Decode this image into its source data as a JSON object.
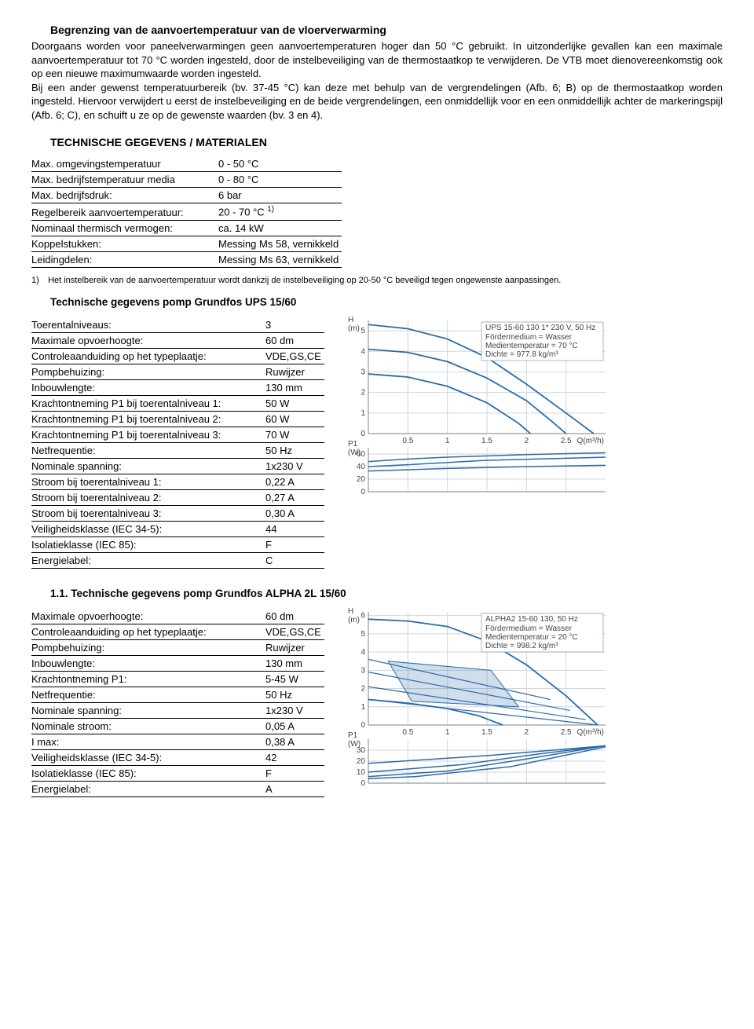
{
  "intro": {
    "heading": "Begrenzing van de aanvoertemperatuur van de vloerverwarming",
    "para": "Doorgaans worden voor paneelverwarmingen geen aanvoertemperaturen hoger dan 50 °C gebruikt. In uitzonderlijke gevallen kan een maximale aanvoertemperatuur tot 70 °C worden ingesteld, door de instelbeveiliging van de thermostaatkop te verwijderen. De VTB moet dienovereenkomstig ook op een nieuwe maximumwaarde worden ingesteld.\nBij een ander gewenst temperatuurbereik (bv. 37-45 °C) kan deze met behulp van de vergrendelingen (Afb. 6; B) op de thermostaatkop worden ingesteld. Hiervoor verwijdert u eerst de instelbeveiliging en de beide vergrendelingen, een onmiddellijk voor en een onmiddellijk achter de markeringspijl (Afb. 6; C), en schuift u ze op de gewenste waarden (bv. 3 en 4)."
  },
  "tech_heading": "TECHNISCHE GEGEVENS / MATERIALEN",
  "spec1": {
    "rows": [
      {
        "k": "Max. omgevingstemperatuur",
        "v": "0 - 50 °C"
      },
      {
        "k": "Max. bedrijfstemperatuur media",
        "v": "0 - 80 °C"
      },
      {
        "k": "Max. bedrijfsdruk:",
        "v": "6 bar"
      },
      {
        "k": "Regelbereik aanvoertemperatuur:",
        "v": "20 - 70 °C ",
        "sup": "1)"
      },
      {
        "k": "Nominaal thermisch vermogen:",
        "v": "ca. 14 kW"
      },
      {
        "k": "Koppelstukken:",
        "v": "Messing Ms 58, vernikkeld"
      },
      {
        "k": "Leidingdelen:",
        "v": "Messing Ms 63, vernikkeld"
      }
    ]
  },
  "footnote": {
    "num": "1)",
    "text": "Het instelbereik van de aanvoertemperatuur wordt dankzij de instelbeveiliging op 20-50 °C beveiligd tegen ongewenste aanpassingen."
  },
  "pump1": {
    "heading": "Technische gegevens pomp Grundfos UPS 15/60",
    "rows": [
      {
        "k": "Toerentalniveaus:",
        "v": "3"
      },
      {
        "k": "Maximale opvoerhoogte:",
        "v": "60 dm"
      },
      {
        "k": "Controleaanduiding op het typeplaatje:",
        "v": "VDE,GS,CE"
      },
      {
        "k": "Pompbehuizing:",
        "v": "Ruwijzer"
      },
      {
        "k": "Inbouwlengte:",
        "v": "130 mm"
      },
      {
        "k": "Krachtontneming P1 bij toerentalniveau 1:",
        "v": "50 W"
      },
      {
        "k": "Krachtontneming P1 bij toerentalniveau 2:",
        "v": "60 W"
      },
      {
        "k": "Krachtontneming P1 bij toerentalniveau 3:",
        "v": "70 W"
      },
      {
        "k": "Netfrequentie:",
        "v": "50 Hz"
      },
      {
        "k": "Nominale spanning:",
        "v": "1x230 V"
      },
      {
        "k": "Stroom bij toerentalniveau 1:",
        "v": "0,22 A"
      },
      {
        "k": "Stroom bij toerentalniveau 2:",
        "v": "0,27 A"
      },
      {
        "k": "Stroom bij toerentalniveau 3:",
        "v": "0,30 A"
      },
      {
        "k": "Veiligheidsklasse (IEC 34-5):",
        "v": "44"
      },
      {
        "k": "Isolatieklasse (IEC 85):",
        "v": "F"
      },
      {
        "k": "Energielabel:",
        "v": "C"
      }
    ]
  },
  "pump2": {
    "heading": "1.1.  Technische gegevens pomp Grundfos ALPHA 2L 15/60",
    "rows": [
      {
        "k": "Maximale opvoerhoogte:",
        "v": "60 dm"
      },
      {
        "k": "Controleaanduiding op het typeplaatje:",
        "v": "VDE,GS,CE"
      },
      {
        "k": "Pompbehuizing:",
        "v": "Ruwijzer"
      },
      {
        "k": "Inbouwlengte:",
        "v": "130 mm"
      },
      {
        "k": "Krachtontneming P1:",
        "v": "5-45 W"
      },
      {
        "k": "Netfrequentie:",
        "v": "50 Hz"
      },
      {
        "k": "Nominale spanning:",
        "v": "1x230 V"
      },
      {
        "k": "Nominale stroom:",
        "v": "0,05 A"
      },
      {
        "k": "I max:",
        "v": "0,38 A"
      },
      {
        "k": "Veiligheidsklasse (IEC 34-5):",
        "v": "42"
      },
      {
        "k": "Isolatieklasse (IEC 85):",
        "v": "F"
      },
      {
        "k": "Energielabel:",
        "v": "A"
      }
    ]
  },
  "chart1": {
    "title": "UPS 15-60 130   1* 230 V, 50 Hz",
    "legend_lines": [
      "Fördermedium = Wasser",
      "Medientemperatur = 70 °C",
      "Dichte = 977.8 kg/m³"
    ],
    "y_label": "H\n(m)",
    "x_label": "Q(m³/h)",
    "x_ticks": [
      0,
      0.5,
      1,
      1.5,
      2,
      2.5
    ],
    "y_ticks": [
      0,
      1,
      2,
      3,
      4,
      5
    ],
    "xlim": [
      0,
      3.0
    ],
    "ylim": [
      0,
      5.5
    ],
    "curves": [
      [
        [
          0,
          5.3
        ],
        [
          0.5,
          5.1
        ],
        [
          1.0,
          4.6
        ],
        [
          1.5,
          3.7
        ],
        [
          2.0,
          2.4
        ],
        [
          2.5,
          1.0
        ],
        [
          2.85,
          0
        ]
      ],
      [
        [
          0,
          4.1
        ],
        [
          0.5,
          3.95
        ],
        [
          1.0,
          3.5
        ],
        [
          1.5,
          2.7
        ],
        [
          2.0,
          1.6
        ],
        [
          2.35,
          0.5
        ],
        [
          2.5,
          0
        ]
      ],
      [
        [
          0,
          2.9
        ],
        [
          0.5,
          2.75
        ],
        [
          1.0,
          2.3
        ],
        [
          1.5,
          1.5
        ],
        [
          1.9,
          0.5
        ],
        [
          2.05,
          0
        ]
      ]
    ],
    "curve_color": "#2b6aa8",
    "grid_color": "#cfd6dc",
    "p1_label": "P1\n(W)",
    "p1_ticks": [
      0,
      20,
      40,
      60
    ],
    "p1_lim": [
      0,
      70
    ],
    "p1_curves": [
      [
        [
          0,
          48
        ],
        [
          0.5,
          52
        ],
        [
          1.0,
          55
        ],
        [
          2.0,
          59
        ],
        [
          3.0,
          62
        ]
      ],
      [
        [
          0,
          40
        ],
        [
          0.5,
          43
        ],
        [
          1.5,
          50
        ],
        [
          3.0,
          55
        ]
      ],
      [
        [
          0,
          33
        ],
        [
          1.0,
          37
        ],
        [
          2.0,
          40
        ],
        [
          3.0,
          42
        ]
      ]
    ]
  },
  "chart2": {
    "title": "ALPHA2 15-60 130, 50 Hz",
    "legend_lines": [
      "Fördermedium = Wasser",
      "Medientemperatur = 20 °C",
      "Dichte = 998.2 kg/m³"
    ],
    "y_label": "H\n(m)",
    "x_label": "Q(m³/h)",
    "x_ticks": [
      0,
      0.5,
      1,
      1.5,
      2,
      2.5
    ],
    "y_ticks": [
      0,
      1,
      2,
      3,
      4,
      5,
      6
    ],
    "xlim": [
      0,
      3.0
    ],
    "ylim": [
      0,
      6.2
    ],
    "curves": [
      [
        [
          0,
          5.8
        ],
        [
          0.5,
          5.7
        ],
        [
          1.0,
          5.4
        ],
        [
          1.5,
          4.6
        ],
        [
          2.0,
          3.3
        ],
        [
          2.5,
          1.6
        ],
        [
          2.9,
          0
        ]
      ],
      [
        [
          0,
          1.4
        ],
        [
          0.5,
          1.2
        ],
        [
          1.0,
          0.9
        ],
        [
          1.4,
          0.5
        ],
        [
          1.7,
          0
        ]
      ]
    ],
    "diag_lines": [
      [
        [
          0,
          1.4
        ],
        [
          2.9,
          0
        ]
      ],
      [
        [
          0,
          2.1
        ],
        [
          2.75,
          0.3
        ]
      ],
      [
        [
          0,
          2.9
        ],
        [
          2.55,
          0.8
        ]
      ],
      [
        [
          0,
          3.6
        ],
        [
          2.3,
          1.4
        ]
      ]
    ],
    "shaded_poly": [
      [
        0.25,
        3.5
      ],
      [
        1.55,
        3.0
      ],
      [
        1.9,
        1.0
      ],
      [
        0.55,
        1.3
      ]
    ],
    "curve_color": "#2b6aa8",
    "grid_color": "#cfd6dc",
    "p1_label": "P1\n(W)",
    "p1_ticks": [
      0,
      10,
      20,
      30
    ],
    "p1_lim": [
      0,
      40
    ],
    "p1_curves": [
      [
        [
          0,
          4
        ],
        [
          0.6,
          6
        ],
        [
          1.8,
          15
        ],
        [
          3.0,
          33
        ]
      ],
      [
        [
          0,
          6
        ],
        [
          1.0,
          11
        ],
        [
          2.0,
          22
        ],
        [
          3.0,
          34
        ]
      ],
      [
        [
          0,
          10
        ],
        [
          1.2,
          17
        ],
        [
          2.2,
          27
        ],
        [
          3.0,
          34
        ]
      ],
      [
        [
          0,
          18
        ],
        [
          1.5,
          25
        ],
        [
          2.5,
          31
        ],
        [
          3.0,
          34
        ]
      ]
    ]
  },
  "colors": {
    "text": "#000000",
    "axis": "#7a828a"
  }
}
